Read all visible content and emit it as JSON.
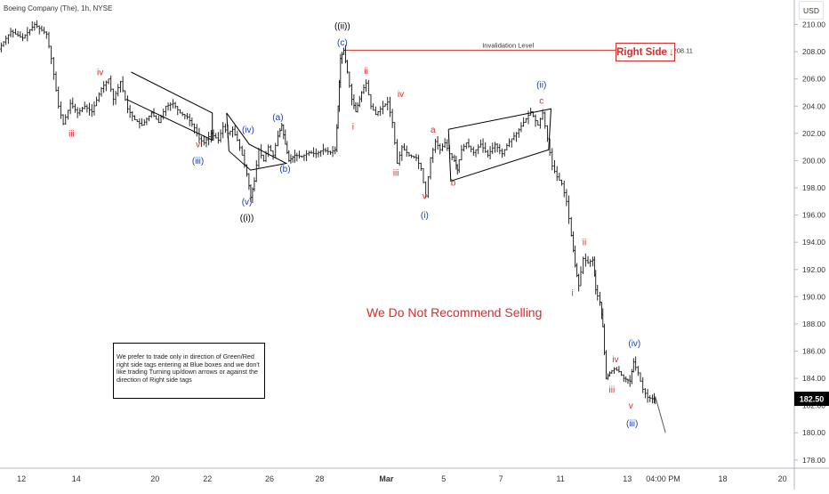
{
  "header": {
    "title": "Boeing Company (The), 1h, NYSE",
    "currency_button": "USD"
  },
  "right_side_tag": {
    "label": "Right Side",
    "arrow_icon": "down-arrow-icon",
    "color": "#d32f2f"
  },
  "warning_text": "We Do Not Recommend Selling",
  "note": "We prefer to trade only in direction of Green/Red right side tags entering at Blue boxes and we don't like trading Turning up/down arrows or against the direction of Right side tags",
  "colors": {
    "red": "#d32f2f",
    "blue": "#1a3fa8",
    "black": "#000000"
  },
  "chart_data": {
    "type": "line",
    "instrument": "Boeing Company (The)",
    "interval": "1h",
    "exchange": "NYSE",
    "y_ticks": [
      178,
      180,
      182,
      184,
      186,
      188,
      190,
      192,
      194,
      196,
      198,
      200,
      202,
      204,
      206,
      208,
      210
    ],
    "y_tick_labels": [
      "178.00",
      "180.00",
      "182.00",
      "184.00",
      "186.00",
      "188.00",
      "190.00",
      "192.00",
      "194.00",
      "196.00",
      "198.00",
      "200.00",
      "202.00",
      "204.00",
      "206.00",
      "208.00",
      "210.00"
    ],
    "ylim": [
      177.4,
      211.8
    ],
    "x_ticks": [
      {
        "label": "12",
        "t": 0.9
      },
      {
        "label": "14",
        "t": 3.2
      },
      {
        "label": "20",
        "t": 6.5
      },
      {
        "label": "22",
        "t": 8.7
      },
      {
        "label": "26",
        "t": 11.3
      },
      {
        "label": "28",
        "t": 13.4
      },
      {
        "label": "Mar",
        "t": 16.2
      },
      {
        "label": "5",
        "t": 18.6
      },
      {
        "label": "7",
        "t": 21.0
      },
      {
        "label": "11",
        "t": 23.5
      },
      {
        "label": "13",
        "t": 26.3
      },
      {
        "label": "04:00 PM",
        "t": 27.8
      },
      {
        "label": "18",
        "t": 30.3
      },
      {
        "label": "20",
        "t": 32.8
      }
    ],
    "xlim": [
      0,
      33.3
    ],
    "price_path": [
      [
        0.0,
        208.2
      ],
      [
        0.5,
        209.5
      ],
      [
        1.0,
        209.0
      ],
      [
        1.5,
        210.0
      ],
      [
        2.0,
        209.3
      ],
      [
        2.2,
        207.5
      ],
      [
        2.5,
        204.0
      ],
      [
        2.7,
        202.7
      ],
      [
        3.0,
        204.2
      ],
      [
        3.3,
        203.5
      ],
      [
        3.6,
        204.0
      ],
      [
        3.9,
        203.6
      ],
      [
        4.3,
        205.3
      ],
      [
        4.6,
        206.0
      ],
      [
        4.8,
        204.5
      ],
      [
        5.1,
        205.8
      ],
      [
        5.4,
        203.8
      ],
      [
        5.7,
        203.0
      ],
      [
        6.0,
        202.6
      ],
      [
        6.4,
        203.5
      ],
      [
        6.7,
        202.8
      ],
      [
        7.0,
        204.0
      ],
      [
        7.3,
        204.2
      ],
      [
        7.6,
        203.5
      ],
      [
        7.9,
        203.2
      ],
      [
        8.2,
        202.4
      ],
      [
        8.4,
        201.6
      ],
      [
        8.6,
        201.3
      ],
      [
        8.9,
        202.0
      ],
      [
        9.2,
        201.5
      ],
      [
        9.4,
        202.5
      ],
      [
        9.6,
        202.0
      ],
      [
        9.8,
        202.3
      ],
      [
        10.0,
        201.5
      ],
      [
        10.2,
        200.4
      ],
      [
        10.4,
        199.0
      ],
      [
        10.55,
        197.3
      ],
      [
        10.7,
        198.5
      ],
      [
        10.9,
        200.8
      ],
      [
        11.1,
        200.0
      ],
      [
        11.3,
        201.0
      ],
      [
        11.5,
        200.4
      ],
      [
        11.7,
        201.8
      ],
      [
        11.85,
        202.6
      ],
      [
        12.0,
        201.2
      ],
      [
        12.15,
        200.0
      ],
      [
        12.4,
        200.4
      ],
      [
        12.7,
        200.3
      ],
      [
        13.0,
        200.6
      ],
      [
        13.3,
        200.5
      ],
      [
        13.6,
        200.8
      ],
      [
        13.9,
        200.6
      ],
      [
        14.1,
        200.8
      ],
      [
        14.2,
        204.0
      ],
      [
        14.3,
        207.5
      ],
      [
        14.45,
        208.1
      ],
      [
        14.6,
        206.5
      ],
      [
        14.8,
        204.5
      ],
      [
        14.95,
        203.6
      ],
      [
        15.2,
        205.0
      ],
      [
        15.4,
        205.7
      ],
      [
        15.6,
        204.0
      ],
      [
        15.8,
        203.4
      ],
      [
        16.0,
        203.8
      ],
      [
        16.3,
        204.3
      ],
      [
        16.5,
        202.8
      ],
      [
        16.7,
        199.8
      ],
      [
        16.9,
        201.0
      ],
      [
        17.2,
        200.4
      ],
      [
        17.5,
        200.2
      ],
      [
        17.7,
        199.4
      ],
      [
        17.9,
        197.4
      ],
      [
        18.1,
        200.2
      ],
      [
        18.3,
        201.4
      ],
      [
        18.5,
        200.8
      ],
      [
        18.7,
        201.3
      ],
      [
        18.9,
        200.5
      ],
      [
        19.1,
        200.0
      ],
      [
        19.2,
        199.3
      ],
      [
        19.4,
        200.8
      ],
      [
        19.6,
        201.3
      ],
      [
        19.9,
        200.6
      ],
      [
        20.2,
        201.2
      ],
      [
        20.5,
        200.4
      ],
      [
        20.8,
        201.2
      ],
      [
        21.1,
        200.5
      ],
      [
        21.4,
        201.4
      ],
      [
        21.7,
        202.0
      ],
      [
        22.0,
        202.8
      ],
      [
        22.3,
        203.6
      ],
      [
        22.6,
        202.6
      ],
      [
        22.8,
        203.5
      ],
      [
        23.0,
        201.6
      ],
      [
        23.2,
        199.6
      ],
      [
        23.4,
        198.8
      ],
      [
        23.6,
        198.3
      ],
      [
        23.8,
        197.0
      ],
      [
        24.0,
        194.5
      ],
      [
        24.15,
        192.3
      ],
      [
        24.3,
        190.8
      ],
      [
        24.5,
        192.8
      ],
      [
        24.7,
        192.5
      ],
      [
        24.9,
        192.7
      ],
      [
        25.0,
        190.5
      ],
      [
        25.2,
        189.6
      ],
      [
        25.3,
        187.8
      ],
      [
        25.45,
        184.0
      ],
      [
        25.6,
        184.4
      ],
      [
        25.8,
        184.7
      ],
      [
        26.0,
        184.5
      ],
      [
        26.2,
        184.0
      ],
      [
        26.45,
        183.8
      ],
      [
        26.6,
        185.2
      ],
      [
        26.8,
        184.4
      ],
      [
        27.0,
        183.2
      ],
      [
        27.2,
        182.6
      ],
      [
        27.4,
        182.5
      ],
      [
        27.5,
        182.5
      ]
    ],
    "projection": [
      [
        27.5,
        182.5
      ],
      [
        27.9,
        180.0
      ]
    ],
    "invalidation_level": {
      "label": "Invalidation Level",
      "value": 208.11,
      "value_label": "208.11",
      "t_start": 14.5,
      "t_end": 28.1
    },
    "current_price": {
      "value": 182.5,
      "label": "182.50"
    },
    "channels": [
      {
        "color": "black",
        "points": [
          [
            5.5,
            206.5
          ],
          [
            8.9,
            203.5
          ],
          [
            8.9,
            201.5
          ],
          [
            5.3,
            204.5
          ]
        ]
      },
      {
        "color": "black",
        "points": [
          [
            9.5,
            203.5
          ],
          [
            10.45,
            201.2
          ],
          [
            12.0,
            199.8
          ],
          [
            10.5,
            199.3
          ],
          [
            9.6,
            200.7
          ],
          [
            9.5,
            203.5
          ]
        ]
      },
      {
        "color": "black",
        "points": [
          [
            18.8,
            202.3
          ],
          [
            23.1,
            203.8
          ],
          [
            23.0,
            200.8
          ],
          [
            18.9,
            198.5
          ],
          [
            18.8,
            202.3
          ]
        ]
      }
    ],
    "wave_labels": [
      {
        "text": "iii",
        "t": 3.0,
        "y": 202.0,
        "color": "red"
      },
      {
        "text": "iv",
        "t": 4.2,
        "y": 206.5,
        "color": "red"
      },
      {
        "text": "v",
        "t": 8.3,
        "y": 201.2,
        "color": "red"
      },
      {
        "text": "(iii)",
        "t": 8.3,
        "y": 200.0,
        "color": "blue"
      },
      {
        "text": "(iv)",
        "t": 10.4,
        "y": 202.3,
        "color": "blue"
      },
      {
        "text": "(a)",
        "t": 11.65,
        "y": 203.2,
        "color": "blue"
      },
      {
        "text": "(b)",
        "t": 11.95,
        "y": 199.4,
        "color": "blue"
      },
      {
        "text": "(v)",
        "t": 10.35,
        "y": 197.0,
        "color": "blue"
      },
      {
        "text": "((i))",
        "t": 10.35,
        "y": 195.8,
        "color": "black"
      },
      {
        "text": "((ii))",
        "t": 14.35,
        "y": 209.9,
        "color": "black"
      },
      {
        "text": "(c)",
        "t": 14.35,
        "y": 208.7,
        "color": "blue"
      },
      {
        "text": "ii",
        "t": 15.35,
        "y": 206.6,
        "color": "red"
      },
      {
        "text": "i",
        "t": 14.8,
        "y": 202.5,
        "color": "red"
      },
      {
        "text": "iv",
        "t": 16.8,
        "y": 204.9,
        "color": "red"
      },
      {
        "text": "iii",
        "t": 16.6,
        "y": 199.1,
        "color": "red"
      },
      {
        "text": "a",
        "t": 18.15,
        "y": 202.3,
        "color": "red"
      },
      {
        "text": "b",
        "t": 19.0,
        "y": 198.4,
        "color": "red"
      },
      {
        "text": "v",
        "t": 17.8,
        "y": 197.4,
        "color": "red"
      },
      {
        "text": "(i)",
        "t": 17.8,
        "y": 196.0,
        "color": "blue"
      },
      {
        "text": "(ii)",
        "t": 22.7,
        "y": 205.6,
        "color": "blue"
      },
      {
        "text": "c",
        "t": 22.7,
        "y": 204.4,
        "color": "red"
      },
      {
        "text": "ii",
        "t": 24.5,
        "y": 194.0,
        "color": "red"
      },
      {
        "text": "i",
        "t": 24.0,
        "y": 190.3,
        "color": "red"
      },
      {
        "text": "iv",
        "t": 25.8,
        "y": 185.4,
        "color": "red"
      },
      {
        "text": "iii",
        "t": 25.65,
        "y": 183.2,
        "color": "red"
      },
      {
        "text": "(iv)",
        "t": 26.6,
        "y": 186.6,
        "color": "blue"
      },
      {
        "text": "v",
        "t": 26.45,
        "y": 182.0,
        "color": "red"
      },
      {
        "text": "(iii)",
        "t": 26.5,
        "y": 180.7,
        "color": "blue"
      }
    ]
  }
}
